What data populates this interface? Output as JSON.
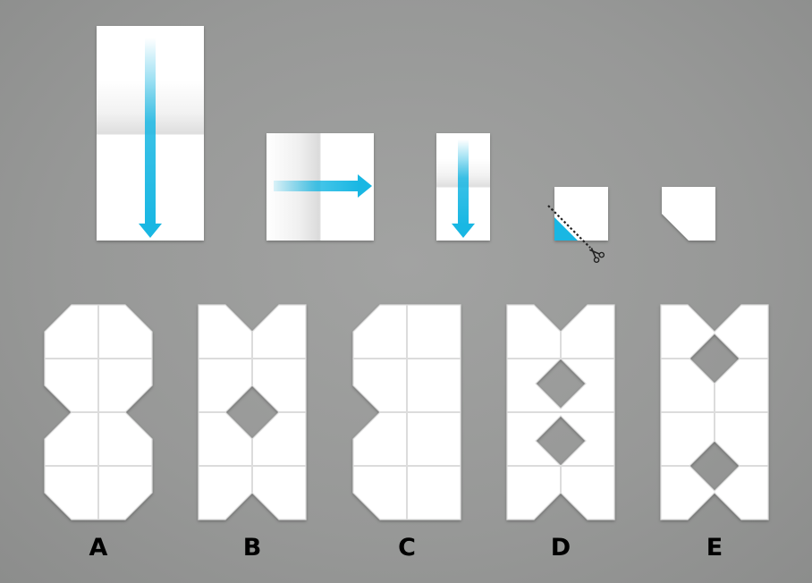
{
  "puzzle": {
    "options": [
      {
        "label": "A"
      },
      {
        "label": "B"
      },
      {
        "label": "C"
      },
      {
        "label": "D"
      },
      {
        "label": "E"
      }
    ]
  },
  "colors": {
    "paper": "#ffffff",
    "fold_arrow": "#19b7e3",
    "cut_marker": "#19b7e3",
    "crease": "#dcdcdc",
    "label": "#000000"
  },
  "icons": [
    "fold-arrow-down",
    "fold-arrow-right",
    "scissors-icon"
  ]
}
